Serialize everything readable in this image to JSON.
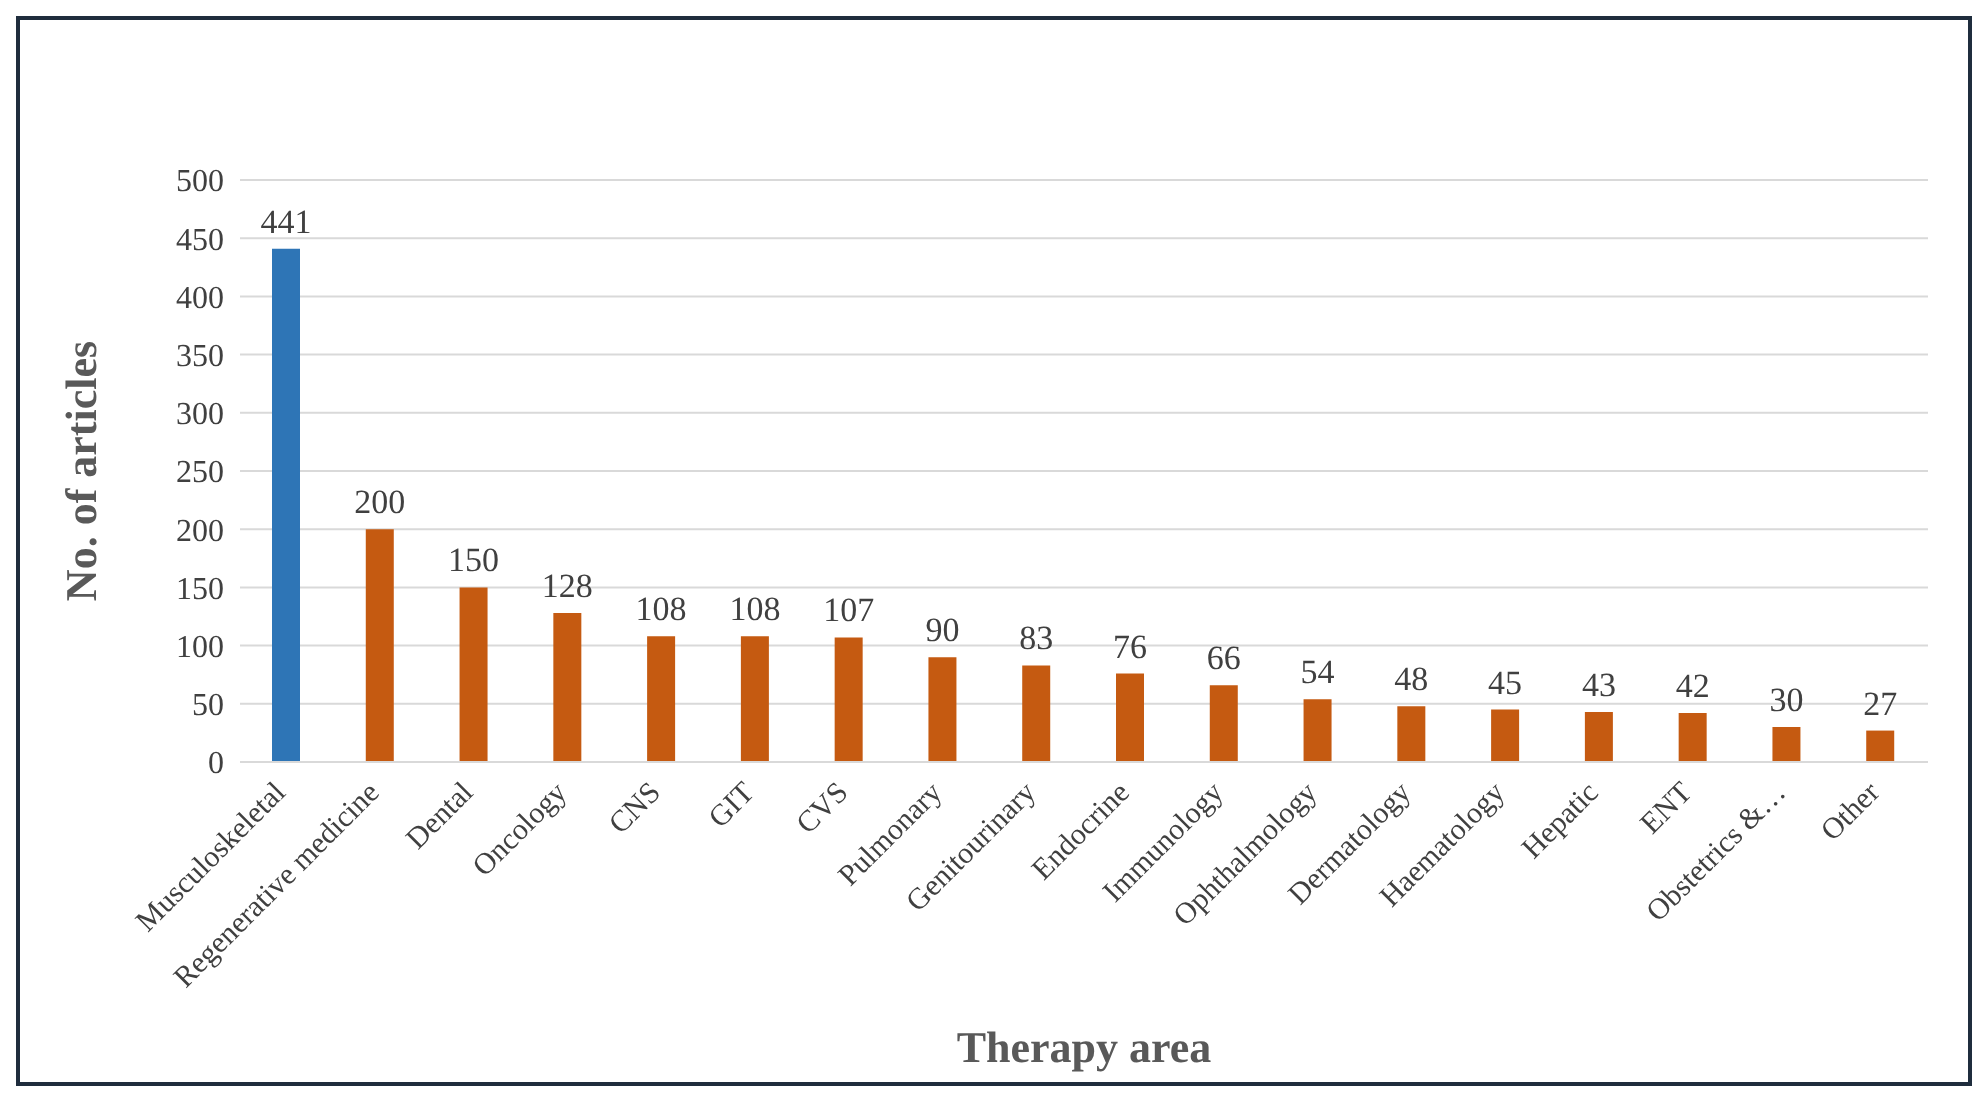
{
  "chart_data": {
    "type": "bar",
    "xlabel": "Therapy area",
    "ylabel": "No. of articles",
    "categories": [
      "Musculoskeletal",
      "Regenerative medicine",
      "Dental",
      "Oncology",
      "CNS",
      "GIT",
      "CVS",
      "Pulmonary",
      "Genitourinary",
      "Endocrine",
      "Immunology",
      "Ophthalmology",
      "Dermatology",
      "Haematology",
      "Hepatic",
      "ENT",
      "Obstetrics &…",
      "Other"
    ],
    "values": [
      441,
      200,
      150,
      128,
      108,
      108,
      107,
      90,
      83,
      76,
      66,
      54,
      48,
      45,
      43,
      42,
      30,
      27
    ],
    "colors": [
      "#2e75b6",
      "#c55a11",
      "#c55a11",
      "#c55a11",
      "#c55a11",
      "#c55a11",
      "#c55a11",
      "#c55a11",
      "#c55a11",
      "#c55a11",
      "#c55a11",
      "#c55a11",
      "#c55a11",
      "#c55a11",
      "#c55a11",
      "#c55a11",
      "#c55a11",
      "#c55a11"
    ],
    "ylim": [
      0,
      500
    ],
    "yticks": [
      0,
      50,
      100,
      150,
      200,
      250,
      300,
      350,
      400,
      450,
      500
    ],
    "grid": "y",
    "data_labels": true
  }
}
